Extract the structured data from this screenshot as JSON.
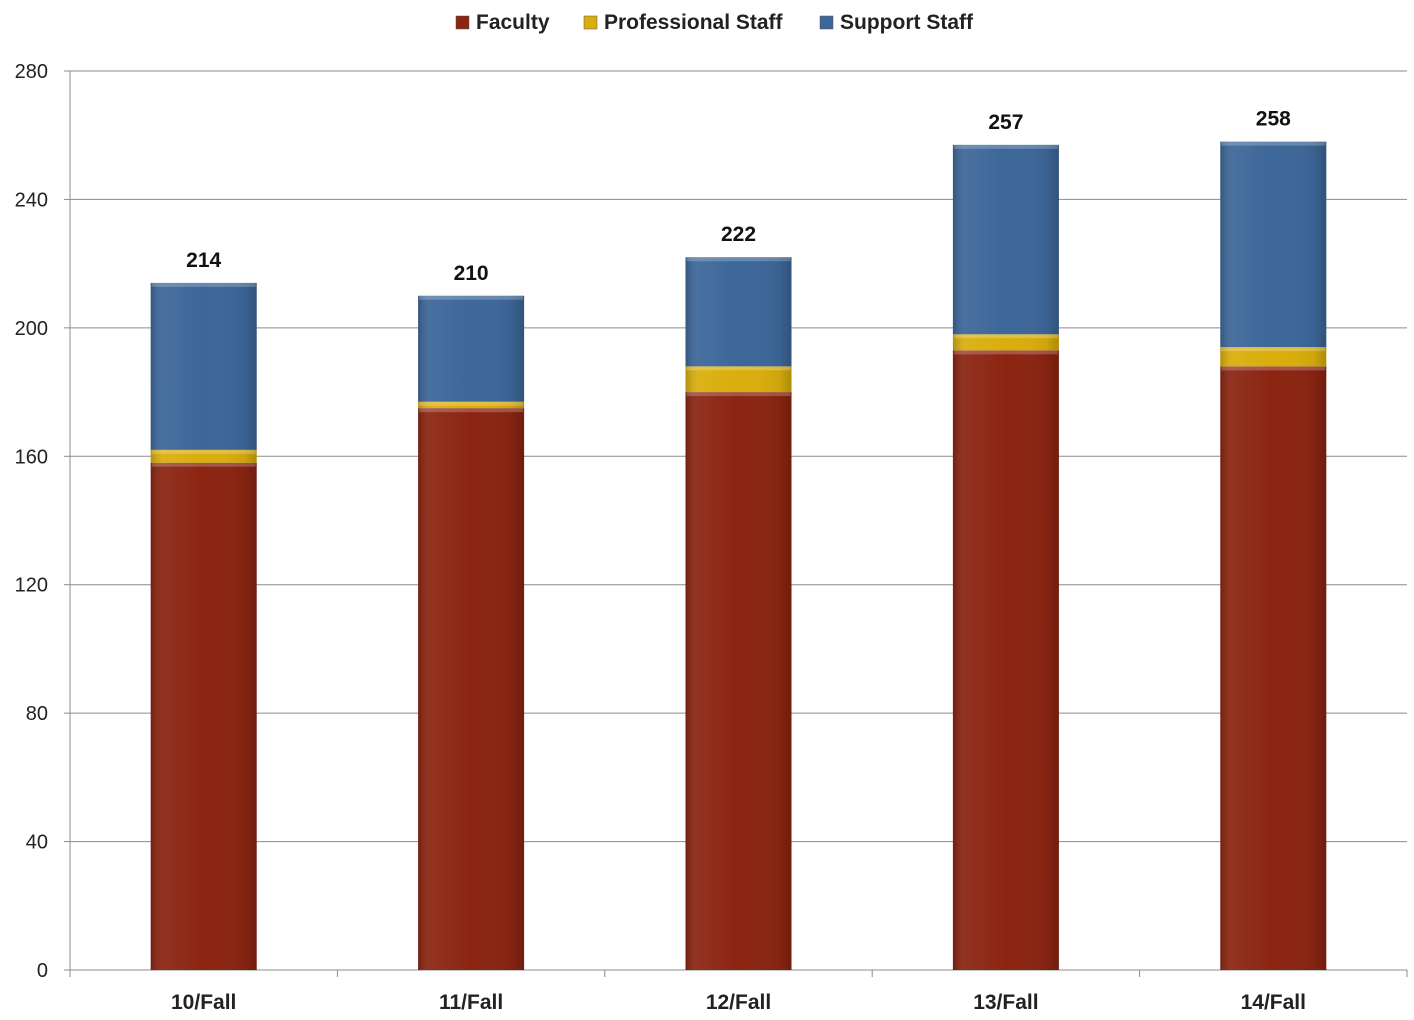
{
  "chart_data": {
    "type": "bar",
    "stacked": true,
    "categories": [
      "10/Fall",
      "11/Fall",
      "12/Fall",
      "13/Fall",
      "14/Fall"
    ],
    "series": [
      {
        "name": "Faculty",
        "color": "#8B2512",
        "values": [
          158,
          175,
          180,
          193,
          188
        ]
      },
      {
        "name": "Professional Staff",
        "color": "#D9AE0C",
        "values": [
          4,
          2,
          8,
          5,
          6
        ]
      },
      {
        "name": "Support Staff",
        "color": "#3D6799",
        "values": [
          52,
          33,
          34,
          59,
          64
        ]
      }
    ],
    "totals": [
      214,
      210,
      222,
      257,
      258
    ],
    "ylim": [
      0,
      280
    ],
    "yticks": [
      0,
      40,
      80,
      120,
      160,
      200,
      240,
      280
    ],
    "grid": true,
    "legend": "top-center",
    "title": "",
    "xlabel": "",
    "ylabel": ""
  }
}
